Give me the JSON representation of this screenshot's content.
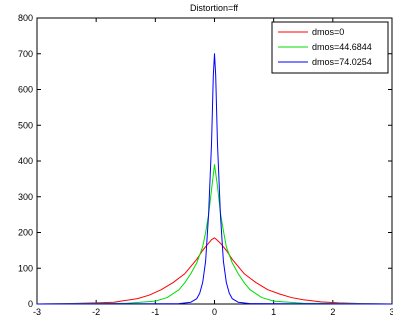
{
  "chart_data": {
    "type": "line",
    "title": "Distortion=ff",
    "xlabel": "",
    "ylabel": "",
    "xlim": [
      -3,
      3
    ],
    "ylim": [
      0,
      800
    ],
    "xticks": [
      -3,
      -2,
      -1,
      0,
      1,
      2,
      3
    ],
    "yticks": [
      0,
      100,
      200,
      300,
      400,
      500,
      600,
      700,
      800
    ],
    "grid": false,
    "legend_position": "top-right",
    "series": [
      {
        "name": "dmos=0",
        "color": "#ff0000",
        "x": [
          -3.0,
          -2.5,
          -2.0,
          -1.7,
          -1.5,
          -1.3,
          -1.1,
          -0.9,
          -0.7,
          -0.5,
          -0.4,
          -0.3,
          -0.2,
          -0.1,
          -0.05,
          0.0,
          0.05,
          0.1,
          0.2,
          0.3,
          0.4,
          0.5,
          0.7,
          0.9,
          1.1,
          1.3,
          1.5,
          1.8,
          2.1,
          2.5,
          3.0
        ],
        "y": [
          0,
          1,
          3,
          5,
          10,
          15,
          25,
          40,
          60,
          85,
          105,
          125,
          150,
          170,
          180,
          185,
          178,
          170,
          150,
          125,
          105,
          85,
          60,
          40,
          28,
          18,
          12,
          6,
          3,
          1,
          0
        ]
      },
      {
        "name": "dmos=44.6844",
        "color": "#00dd00",
        "x": [
          -3.0,
          -1.5,
          -1.0,
          -0.8,
          -0.6,
          -0.5,
          -0.4,
          -0.3,
          -0.2,
          -0.15,
          -0.1,
          -0.05,
          0.0,
          0.05,
          0.1,
          0.15,
          0.2,
          0.3,
          0.4,
          0.5,
          0.6,
          0.8,
          1.0,
          1.5,
          3.0
        ],
        "y": [
          0,
          2,
          8,
          18,
          40,
          60,
          85,
          115,
          160,
          200,
          250,
          320,
          390,
          330,
          255,
          205,
          160,
          115,
          85,
          60,
          40,
          18,
          8,
          2,
          0
        ]
      },
      {
        "name": "dmos=74.0254",
        "color": "#0000ff",
        "x": [
          -3.0,
          -0.6,
          -0.4,
          -0.3,
          -0.25,
          -0.2,
          -0.15,
          -0.1,
          -0.05,
          -0.02,
          0.0,
          0.02,
          0.05,
          0.1,
          0.15,
          0.2,
          0.25,
          0.3,
          0.4,
          0.6,
          3.0
        ],
        "y": [
          0,
          1,
          5,
          15,
          30,
          60,
          120,
          250,
          450,
          640,
          700,
          640,
          450,
          250,
          120,
          60,
          30,
          15,
          5,
          1,
          0
        ]
      }
    ]
  }
}
